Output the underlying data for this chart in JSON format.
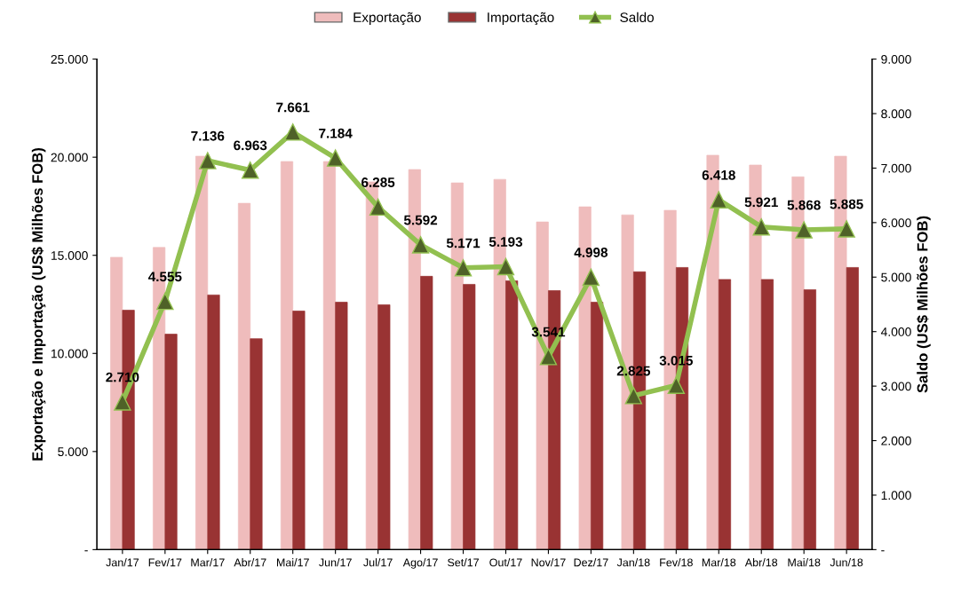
{
  "chart_data": {
    "type": "bar",
    "ylabel": "Exportação e Importação (US$ Milhões FOB)",
    "y2label": "Saldo (US$ Milhões FOB)",
    "categories": [
      "Jan/17",
      "Fev/17",
      "Mar/17",
      "Abr/17",
      "Mai/17",
      "Jun/17",
      "Jul/17",
      "Ago/17",
      "Set/17",
      "Out/17",
      "Nov/17",
      "Dez/17",
      "Jan/18",
      "Fev/18",
      "Mar/18",
      "Abr/18",
      "Mai/18",
      "Jun/18"
    ],
    "series": [
      {
        "name": "Exportação",
        "color": "#efbcbc",
        "values": [
          14900,
          15400,
          20050,
          17650,
          19780,
          19780,
          18740,
          19370,
          18690,
          18870,
          16700,
          17470,
          17060,
          17290,
          20100,
          19600,
          19000,
          20050
        ]
      },
      {
        "name": "Importação",
        "color": "#993333",
        "values": [
          12200,
          10980,
          12980,
          10750,
          12160,
          12610,
          12480,
          13930,
          13520,
          13700,
          13200,
          12610,
          14160,
          14380,
          13770,
          13770,
          13250,
          14380
        ]
      },
      {
        "name": "Saldo",
        "type": "line",
        "axis": "y2",
        "color": "#92c050",
        "marker": "triangle",
        "values": [
          2710,
          4555,
          7136,
          6963,
          7661,
          7184,
          6285,
          5592,
          5171,
          5193,
          3541,
          4998,
          2825,
          3015,
          6418,
          5921,
          5868,
          5885
        ],
        "value_labels": [
          "2.710",
          "4.555",
          "7.136",
          "6.963",
          "7.661",
          "7.184",
          "6.285",
          "5.592",
          "5.171",
          "5.193",
          "3.541",
          "4.998",
          "2.825",
          "3.015",
          "6.418",
          "5.921",
          "5.868",
          "5.885"
        ]
      }
    ],
    "ylim": [
      0,
      25000
    ],
    "yticks": [
      {
        "value": 0,
        "label": "-"
      },
      {
        "value": 5000,
        "label": "5.000"
      },
      {
        "value": 10000,
        "label": "10.000"
      },
      {
        "value": 15000,
        "label": "15.000"
      },
      {
        "value": 20000,
        "label": "20.000"
      },
      {
        "value": 25000,
        "label": "25.000"
      }
    ],
    "y2lim": [
      0,
      9000
    ],
    "y2ticks": [
      {
        "value": 0,
        "label": "-"
      },
      {
        "value": 1000,
        "label": "1.000"
      },
      {
        "value": 2000,
        "label": "2.000"
      },
      {
        "value": 3000,
        "label": "3.000"
      },
      {
        "value": 4000,
        "label": "4.000"
      },
      {
        "value": 5000,
        "label": "5.000"
      },
      {
        "value": 6000,
        "label": "6.000"
      },
      {
        "value": 7000,
        "label": "7.000"
      },
      {
        "value": 8000,
        "label": "8.000"
      },
      {
        "value": 9000,
        "label": "9.000"
      }
    ],
    "grid": false,
    "legend": "top"
  }
}
